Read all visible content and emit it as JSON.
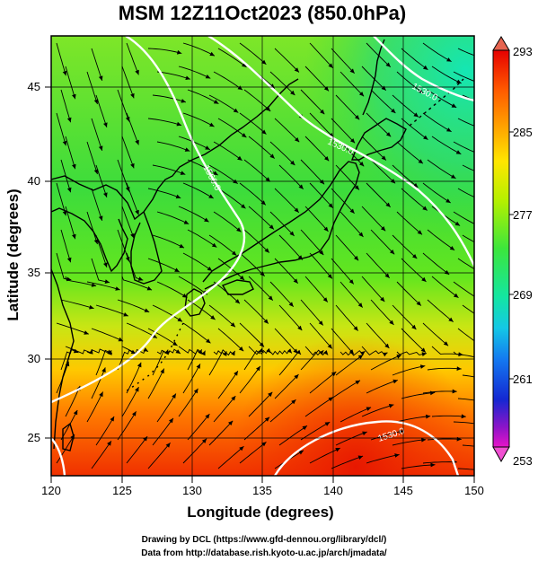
{
  "title": "MSM 12Z11Oct2023 (850.0hPa)",
  "xlabel": "Longitude (degrees)",
  "ylabel": "Latitude  (degrees)",
  "x_ticks": [
    "120",
    "125",
    "130",
    "135",
    "140",
    "145",
    "150"
  ],
  "y_ticks": [
    "25",
    "30",
    "35",
    "40",
    "45"
  ],
  "colorbar": {
    "labels": [
      "293",
      "285",
      "277",
      "269",
      "261",
      "253"
    ],
    "colors": [
      "#e60000",
      "#ff5a00",
      "#ffa800",
      "#ffe600",
      "#b4f000",
      "#3ce63c",
      "#14e6a0",
      "#14c8e6",
      "#1478f0",
      "#1428d2",
      "#8c14c8",
      "#e614c8"
    ]
  },
  "contour_labels": [
    "1560.0",
    "1530.0",
    "1530.0",
    "1530.0"
  ],
  "credits": [
    "Drawing by DCL (https://www.gfd-dennou.org/library/dcl/)",
    "Data from http://database.rish.kyoto-u.ac.jp/arch/jmadata/"
  ]
}
